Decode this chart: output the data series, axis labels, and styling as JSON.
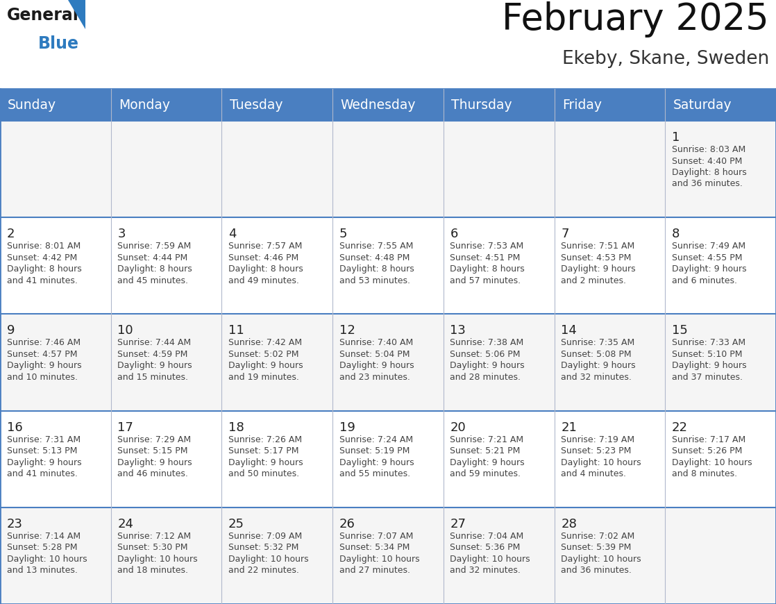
{
  "title": "February 2025",
  "subtitle": "Ekeby, Skane, Sweden",
  "days_of_week": [
    "Sunday",
    "Monday",
    "Tuesday",
    "Wednesday",
    "Thursday",
    "Friday",
    "Saturday"
  ],
  "header_bg": "#4a7fc1",
  "header_text": "#FFFFFF",
  "cell_bg_odd": "#f5f5f5",
  "cell_bg_even": "#FFFFFF",
  "cell_border": "#4a7fc1",
  "day_number_color": "#222222",
  "day_info_color": "#444444",
  "title_color": "#111111",
  "subtitle_color": "#333333",
  "logo_general_color": "#1a1a1a",
  "logo_blue_color": "#2e7bbf",
  "weeks": [
    {
      "days": [
        {
          "day": null,
          "sunrise": null,
          "sunset": null,
          "daylight": null
        },
        {
          "day": null,
          "sunrise": null,
          "sunset": null,
          "daylight": null
        },
        {
          "day": null,
          "sunrise": null,
          "sunset": null,
          "daylight": null
        },
        {
          "day": null,
          "sunrise": null,
          "sunset": null,
          "daylight": null
        },
        {
          "day": null,
          "sunrise": null,
          "sunset": null,
          "daylight": null
        },
        {
          "day": null,
          "sunrise": null,
          "sunset": null,
          "daylight": null
        },
        {
          "day": 1,
          "sunrise": "8:03 AM",
          "sunset": "4:40 PM",
          "daylight": "8 hours\nand 36 minutes."
        }
      ]
    },
    {
      "days": [
        {
          "day": 2,
          "sunrise": "8:01 AM",
          "sunset": "4:42 PM",
          "daylight": "8 hours\nand 41 minutes."
        },
        {
          "day": 3,
          "sunrise": "7:59 AM",
          "sunset": "4:44 PM",
          "daylight": "8 hours\nand 45 minutes."
        },
        {
          "day": 4,
          "sunrise": "7:57 AM",
          "sunset": "4:46 PM",
          "daylight": "8 hours\nand 49 minutes."
        },
        {
          "day": 5,
          "sunrise": "7:55 AM",
          "sunset": "4:48 PM",
          "daylight": "8 hours\nand 53 minutes."
        },
        {
          "day": 6,
          "sunrise": "7:53 AM",
          "sunset": "4:51 PM",
          "daylight": "8 hours\nand 57 minutes."
        },
        {
          "day": 7,
          "sunrise": "7:51 AM",
          "sunset": "4:53 PM",
          "daylight": "9 hours\nand 2 minutes."
        },
        {
          "day": 8,
          "sunrise": "7:49 AM",
          "sunset": "4:55 PM",
          "daylight": "9 hours\nand 6 minutes."
        }
      ]
    },
    {
      "days": [
        {
          "day": 9,
          "sunrise": "7:46 AM",
          "sunset": "4:57 PM",
          "daylight": "9 hours\nand 10 minutes."
        },
        {
          "day": 10,
          "sunrise": "7:44 AM",
          "sunset": "4:59 PM",
          "daylight": "9 hours\nand 15 minutes."
        },
        {
          "day": 11,
          "sunrise": "7:42 AM",
          "sunset": "5:02 PM",
          "daylight": "9 hours\nand 19 minutes."
        },
        {
          "day": 12,
          "sunrise": "7:40 AM",
          "sunset": "5:04 PM",
          "daylight": "9 hours\nand 23 minutes."
        },
        {
          "day": 13,
          "sunrise": "7:38 AM",
          "sunset": "5:06 PM",
          "daylight": "9 hours\nand 28 minutes."
        },
        {
          "day": 14,
          "sunrise": "7:35 AM",
          "sunset": "5:08 PM",
          "daylight": "9 hours\nand 32 minutes."
        },
        {
          "day": 15,
          "sunrise": "7:33 AM",
          "sunset": "5:10 PM",
          "daylight": "9 hours\nand 37 minutes."
        }
      ]
    },
    {
      "days": [
        {
          "day": 16,
          "sunrise": "7:31 AM",
          "sunset": "5:13 PM",
          "daylight": "9 hours\nand 41 minutes."
        },
        {
          "day": 17,
          "sunrise": "7:29 AM",
          "sunset": "5:15 PM",
          "daylight": "9 hours\nand 46 minutes."
        },
        {
          "day": 18,
          "sunrise": "7:26 AM",
          "sunset": "5:17 PM",
          "daylight": "9 hours\nand 50 minutes."
        },
        {
          "day": 19,
          "sunrise": "7:24 AM",
          "sunset": "5:19 PM",
          "daylight": "9 hours\nand 55 minutes."
        },
        {
          "day": 20,
          "sunrise": "7:21 AM",
          "sunset": "5:21 PM",
          "daylight": "9 hours\nand 59 minutes."
        },
        {
          "day": 21,
          "sunrise": "7:19 AM",
          "sunset": "5:23 PM",
          "daylight": "10 hours\nand 4 minutes."
        },
        {
          "day": 22,
          "sunrise": "7:17 AM",
          "sunset": "5:26 PM",
          "daylight": "10 hours\nand 8 minutes."
        }
      ]
    },
    {
      "days": [
        {
          "day": 23,
          "sunrise": "7:14 AM",
          "sunset": "5:28 PM",
          "daylight": "10 hours\nand 13 minutes."
        },
        {
          "day": 24,
          "sunrise": "7:12 AM",
          "sunset": "5:30 PM",
          "daylight": "10 hours\nand 18 minutes."
        },
        {
          "day": 25,
          "sunrise": "7:09 AM",
          "sunset": "5:32 PM",
          "daylight": "10 hours\nand 22 minutes."
        },
        {
          "day": 26,
          "sunrise": "7:07 AM",
          "sunset": "5:34 PM",
          "daylight": "10 hours\nand 27 minutes."
        },
        {
          "day": 27,
          "sunrise": "7:04 AM",
          "sunset": "5:36 PM",
          "daylight": "10 hours\nand 32 minutes."
        },
        {
          "day": 28,
          "sunrise": "7:02 AM",
          "sunset": "5:39 PM",
          "daylight": "10 hours\nand 36 minutes."
        },
        {
          "day": null,
          "sunrise": null,
          "sunset": null,
          "daylight": null
        }
      ]
    }
  ]
}
